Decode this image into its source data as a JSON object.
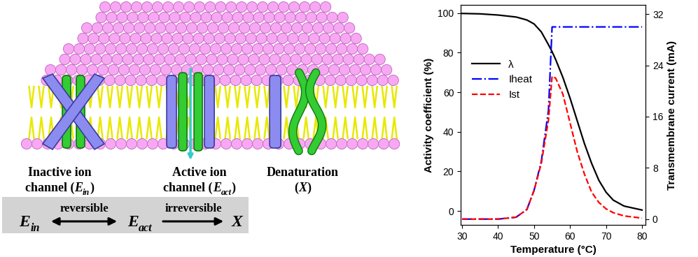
{
  "diagram": {
    "channels": [
      {
        "shape": "inactive",
        "label": [
          [
            {
              "text": "Inactive ion"
            }
          ],
          [
            {
              "text": "channel ("
            },
            {
              "text": "E",
              "style": "italic"
            },
            {
              "text": "in",
              "style": "sub"
            },
            {
              "text": ")"
            }
          ]
        ]
      },
      {
        "shape": "active",
        "label": [
          [
            {
              "text": "Active ion"
            }
          ],
          [
            {
              "text": "channel ("
            },
            {
              "text": "E",
              "style": "italic"
            },
            {
              "text": "act",
              "style": "sub"
            },
            {
              "text": ")"
            }
          ]
        ]
      },
      {
        "shape": "denatured",
        "label": [
          [
            {
              "text": "Denaturation"
            }
          ],
          [
            {
              "text": "("
            },
            {
              "text": "X",
              "style": "italic"
            },
            {
              "text": ")"
            }
          ]
        ]
      }
    ],
    "scheme": {
      "states": [
        [
          {
            "text": "E",
            "style": "italic"
          },
          {
            "text": "in",
            "style": "sub"
          }
        ],
        [
          {
            "text": "E",
            "style": "italic"
          },
          {
            "text": "act",
            "style": "sub"
          }
        ],
        [
          {
            "text": "X",
            "style": "italic"
          }
        ]
      ],
      "transitions": [
        {
          "label": "reversible",
          "kind": "reversible"
        },
        {
          "label": "irreversible",
          "kind": "irreversible"
        }
      ]
    }
  },
  "chart_data": {
    "type": "line",
    "x_label": "Temperature (°C)",
    "y_label": "Activity coefficient (%)",
    "y2_label": "Transmembrane current (mA)",
    "x": [
      30,
      35,
      40,
      45,
      48,
      50,
      52,
      54,
      55,
      56,
      58,
      60,
      62,
      64,
      66,
      68,
      70,
      72,
      75,
      80
    ],
    "series": [
      {
        "name": "λ",
        "color": "#000000",
        "line_style": "solid",
        "values": [
          99.8,
          99.6,
          99.0,
          98.0,
          96.5,
          94.5,
          90.5,
          84.0,
          80.5,
          76.5,
          67.5,
          57.0,
          45.5,
          34.0,
          24.0,
          15.5,
          9.5,
          5.5,
          2.5,
          0.5
        ]
      },
      {
        "name": "Iheat",
        "color": "#0000ff",
        "line_style": "dashdot",
        "axis": "y2",
        "values": [
          0,
          0,
          0,
          0.3,
          1.5,
          4.5,
          9.0,
          17.0,
          30.0,
          30.0,
          30.0,
          30.0,
          30.0,
          30.0,
          30.0,
          30.0,
          30.0,
          30.0,
          30.0,
          30.0
        ]
      },
      {
        "name": "Ist",
        "color": "#ff0000",
        "line_style": "dashed",
        "axis": "y2",
        "values": [
          0,
          0,
          0,
          0.3,
          1.5,
          4.5,
          8.7,
          15.5,
          22.3,
          22.0,
          19.5,
          15.0,
          10.5,
          7.0,
          4.2,
          2.6,
          1.6,
          1.0,
          0.5,
          0.15
        ]
      }
    ],
    "xlim": [
      29.6,
      81
    ],
    "xticks": [
      30,
      40,
      50,
      60,
      70,
      80
    ],
    "ylim": [
      -7,
      104
    ],
    "yticks": [
      0,
      20,
      40,
      60,
      80,
      100
    ],
    "y2lim": [
      -0.9,
      33.4
    ],
    "y2ticks": [
      0,
      8,
      16,
      24,
      32
    ],
    "legend": "center left"
  }
}
